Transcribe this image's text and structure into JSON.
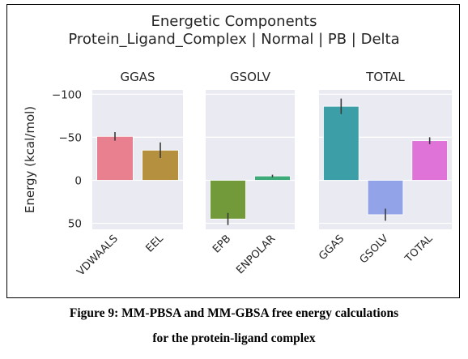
{
  "figure": {
    "caption_line_1": "Figure 9: MM-PBSA and MM-GBSA free energy calculations",
    "caption_line_2": "for the protein-ligand complex"
  },
  "chart_data": {
    "type": "bar",
    "title_line_1": "Energetic Components",
    "title_line_2": "Protein_Ligand_Complex | Normal | PB | Delta",
    "ylabel": "Energy (kcal/mol)",
    "y_inverted": true,
    "ylim": [
      -105,
      57
    ],
    "yticks": [
      -100,
      -50,
      0,
      50
    ],
    "ytick_labels": [
      "−100",
      "−50",
      "0",
      "50"
    ],
    "grid": true,
    "panels": [
      {
        "title": "GGAS",
        "categories": [
          "VDWAALS",
          "EEL"
        ],
        "values": [
          -51,
          -35
        ],
        "errors": [
          5,
          9
        ],
        "colors": [
          "#e8808f",
          "#b5903f"
        ]
      },
      {
        "title": "GSOLV",
        "categories": [
          "EPB",
          "ENPOLAR"
        ],
        "values": [
          45,
          -5
        ],
        "errors": [
          7,
          1.5
        ],
        "colors": [
          "#729a3a",
          "#3eaa7a"
        ]
      },
      {
        "title": "TOTAL",
        "categories": [
          "GGAS",
          "GSOLV",
          "TOTAL"
        ],
        "values": [
          -86,
          40,
          -46
        ],
        "errors": [
          9,
          7,
          4
        ],
        "colors": [
          "#3c9fa8",
          "#93a3e8",
          "#df73d8"
        ]
      }
    ]
  }
}
